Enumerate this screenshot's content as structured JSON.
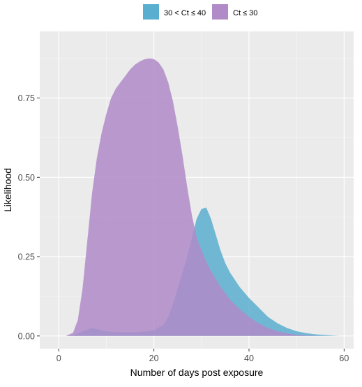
{
  "chart_data": {
    "type": "area",
    "xlabel": "Number of days post exposure",
    "ylabel": "Likelihood",
    "xlim": [
      -4,
      62
    ],
    "ylim": [
      -0.04,
      0.96
    ],
    "xticks": [
      0,
      20,
      40,
      60
    ],
    "xtick_labels": [
      "0",
      "20",
      "40",
      "60"
    ],
    "yticks": [
      0,
      0.25,
      0.5,
      0.75
    ],
    "ytick_labels": [
      "0.00",
      "0.25",
      "0.50",
      "0.75"
    ],
    "grid": true,
    "legend_position": "top",
    "series": [
      {
        "name": "30 < Ct ≤ 40",
        "color": "#5aaed0",
        "x": [
          1.5,
          3,
          4,
          5,
          6,
          7,
          8,
          10,
          12,
          14,
          16,
          18,
          20,
          22,
          23,
          24,
          25,
          26,
          27,
          28,
          29,
          30,
          31,
          32,
          33,
          34,
          35,
          36,
          38,
          40,
          42,
          44,
          46,
          48,
          50,
          52,
          54,
          56,
          58,
          59
        ],
        "y": [
          0,
          0.002,
          0.008,
          0.015,
          0.02,
          0.025,
          0.022,
          0.015,
          0.012,
          0.012,
          0.012,
          0.014,
          0.018,
          0.035,
          0.06,
          0.1,
          0.15,
          0.2,
          0.25,
          0.31,
          0.37,
          0.4,
          0.405,
          0.37,
          0.32,
          0.27,
          0.23,
          0.2,
          0.155,
          0.12,
          0.09,
          0.06,
          0.04,
          0.025,
          0.015,
          0.009,
          0.005,
          0.003,
          0.001,
          0
        ]
      },
      {
        "name": "Ct ≤ 30",
        "color": "#b08bc8",
        "x": [
          1.5,
          3,
          4,
          5,
          6,
          7,
          8,
          9,
          10,
          11,
          12,
          13,
          14,
          15,
          16,
          17,
          18,
          19,
          20,
          21,
          22,
          23,
          24,
          25,
          26,
          27,
          28,
          29,
          30,
          31,
          32,
          34,
          36,
          38,
          40,
          42,
          44,
          46,
          48,
          50,
          52,
          54,
          55
        ],
        "y": [
          0,
          0.01,
          0.05,
          0.15,
          0.3,
          0.45,
          0.56,
          0.64,
          0.7,
          0.75,
          0.78,
          0.8,
          0.82,
          0.84,
          0.855,
          0.865,
          0.872,
          0.875,
          0.873,
          0.862,
          0.84,
          0.8,
          0.74,
          0.66,
          0.57,
          0.47,
          0.38,
          0.31,
          0.27,
          0.235,
          0.205,
          0.155,
          0.115,
          0.085,
          0.06,
          0.04,
          0.025,
          0.015,
          0.008,
          0.004,
          0.002,
          0.001,
          0
        ]
      }
    ]
  }
}
